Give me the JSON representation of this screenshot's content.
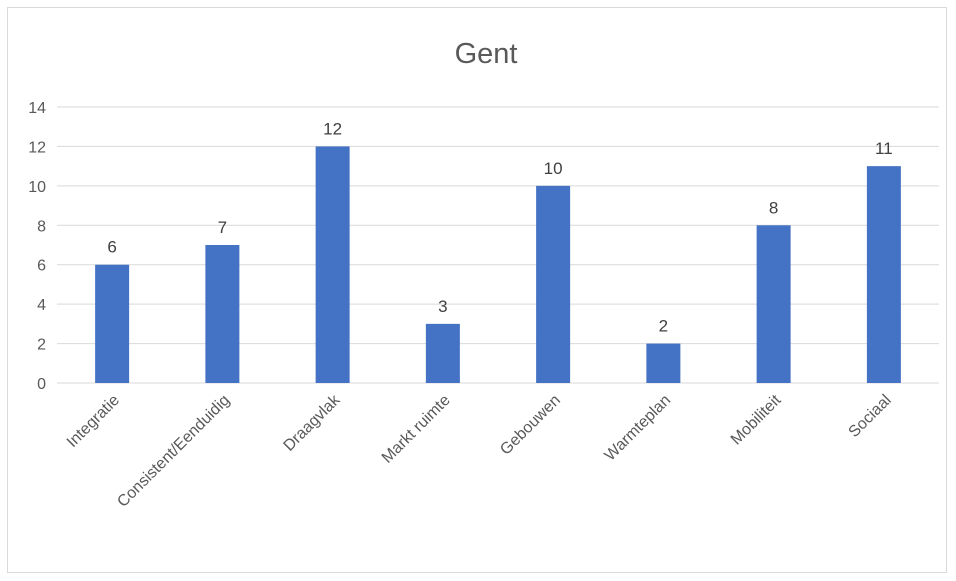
{
  "chart_data": {
    "type": "bar",
    "title": "Gent",
    "categories": [
      "Integratie",
      "Consistent/Eenduidig",
      "Draagvlak",
      "Markt ruimte",
      "Gebouwen",
      "Warmteplan",
      "Mobiliteit",
      "Sociaal"
    ],
    "values": [
      6,
      7,
      12,
      3,
      10,
      2,
      8,
      11
    ],
    "ylim": [
      0,
      14
    ],
    "yticks": [
      0,
      2,
      4,
      6,
      8,
      10,
      12,
      14
    ],
    "grid": true,
    "data_labels": true,
    "colors": {
      "bar": "#4472c4",
      "grid": "#d9d9d9",
      "text": "#595959",
      "title": "#595959"
    }
  }
}
